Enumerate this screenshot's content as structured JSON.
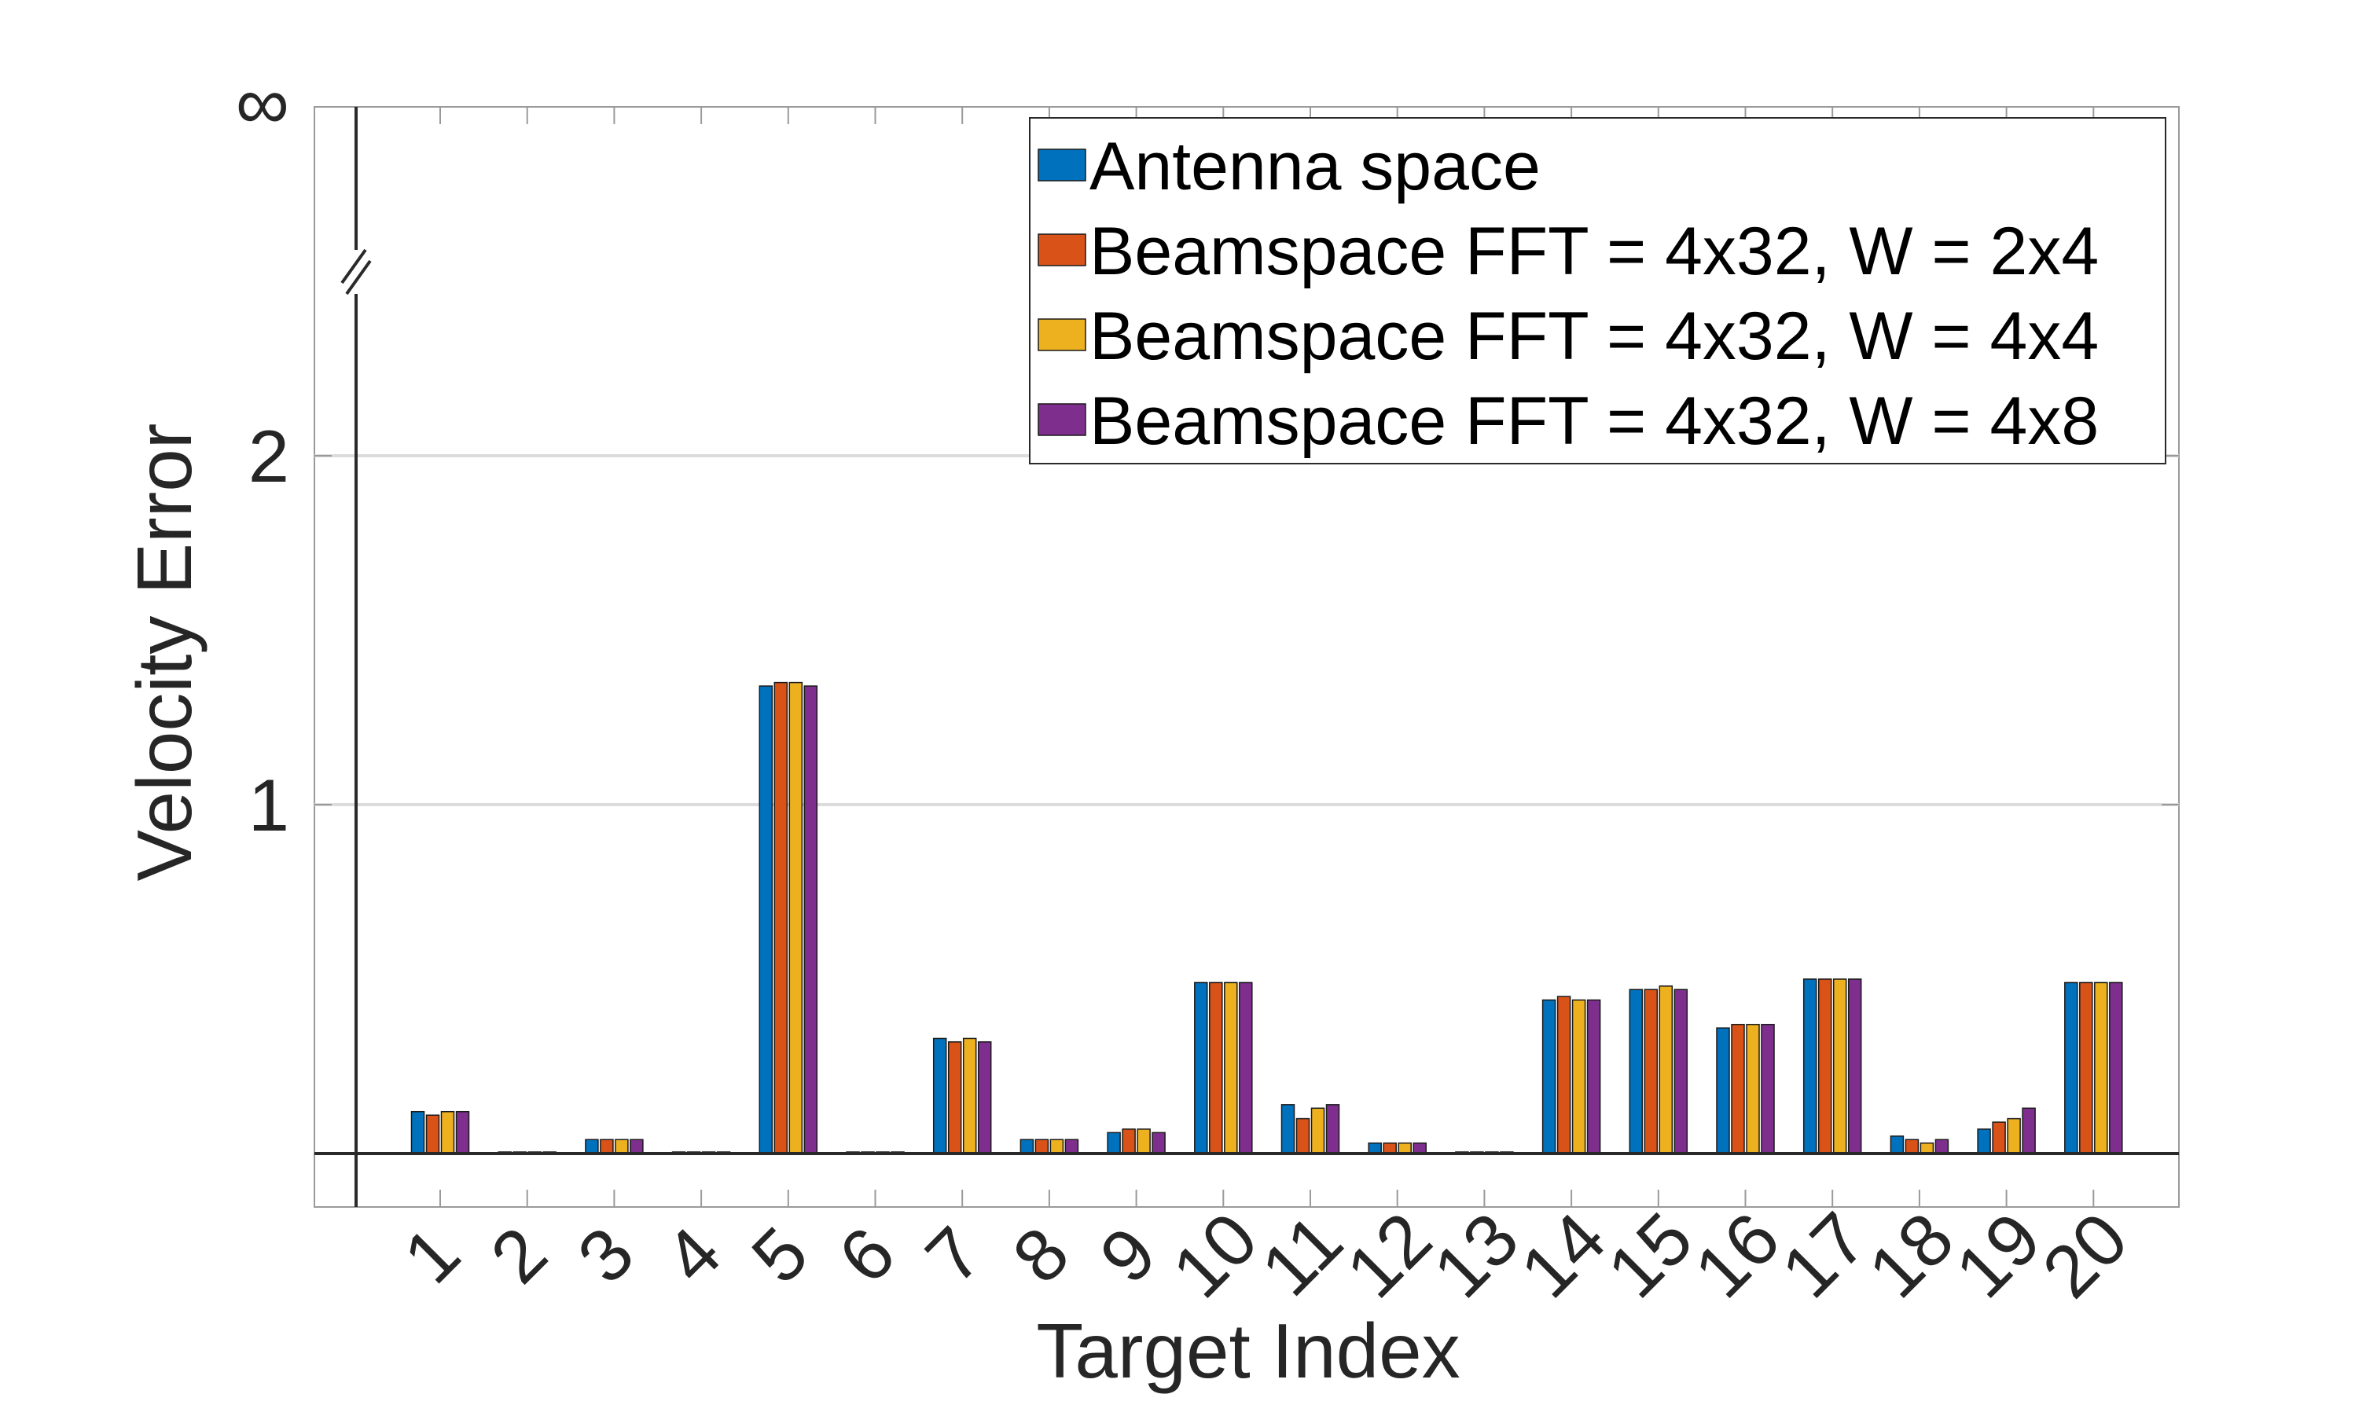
{
  "chart_data": {
    "type": "bar",
    "xlabel": "Target Index",
    "ylabel": "Velocity Error",
    "categories": [
      "1",
      "2",
      "3",
      "4",
      "5",
      "6",
      "7",
      "8",
      "9",
      "10",
      "11",
      "12",
      "13",
      "14",
      "15",
      "16",
      "17",
      "18",
      "19",
      "20"
    ],
    "ylim": [
      -0.15,
      3.0
    ],
    "yticks": [
      {
        "value": 1,
        "label": "1"
      },
      {
        "value": 2,
        "label": "2"
      },
      {
        "value": 3,
        "label": "∞"
      }
    ],
    "y_axis_break": "between 2 and ∞",
    "grid": "horizontal at y = 1 and y = 2",
    "legend_position": "top-right",
    "series": [
      {
        "name": "Antenna space",
        "color": "#0072BD",
        "values": [
          0.12,
          0,
          0.04,
          0,
          1.34,
          0,
          0.33,
          0.04,
          0.06,
          0.49,
          0.14,
          0.03,
          0,
          0.44,
          0.47,
          0.36,
          0.5,
          0.05,
          0.07,
          0.49
        ]
      },
      {
        "name": "Beamspace FFT = 4x32, W = 2x4",
        "color": "#D95319",
        "values": [
          0.11,
          0,
          0.04,
          0,
          1.35,
          0,
          0.32,
          0.04,
          0.07,
          0.49,
          0.1,
          0.03,
          0,
          0.45,
          0.47,
          0.37,
          0.5,
          0.04,
          0.09,
          0.49
        ]
      },
      {
        "name": "Beamspace FFT = 4x32, W = 4x4",
        "color": "#EDB120",
        "values": [
          0.12,
          0,
          0.04,
          0,
          1.35,
          0,
          0.33,
          0.04,
          0.07,
          0.49,
          0.13,
          0.03,
          0,
          0.44,
          0.48,
          0.37,
          0.5,
          0.03,
          0.1,
          0.49
        ]
      },
      {
        "name": "Beamspace FFT = 4x32, W = 4x8",
        "color": "#7E2F8E",
        "values": [
          0.12,
          0,
          0.04,
          0,
          1.34,
          0,
          0.32,
          0.04,
          0.06,
          0.49,
          0.14,
          0.03,
          0,
          0.44,
          0.47,
          0.37,
          0.5,
          0.04,
          0.13,
          0.49
        ]
      }
    ]
  }
}
